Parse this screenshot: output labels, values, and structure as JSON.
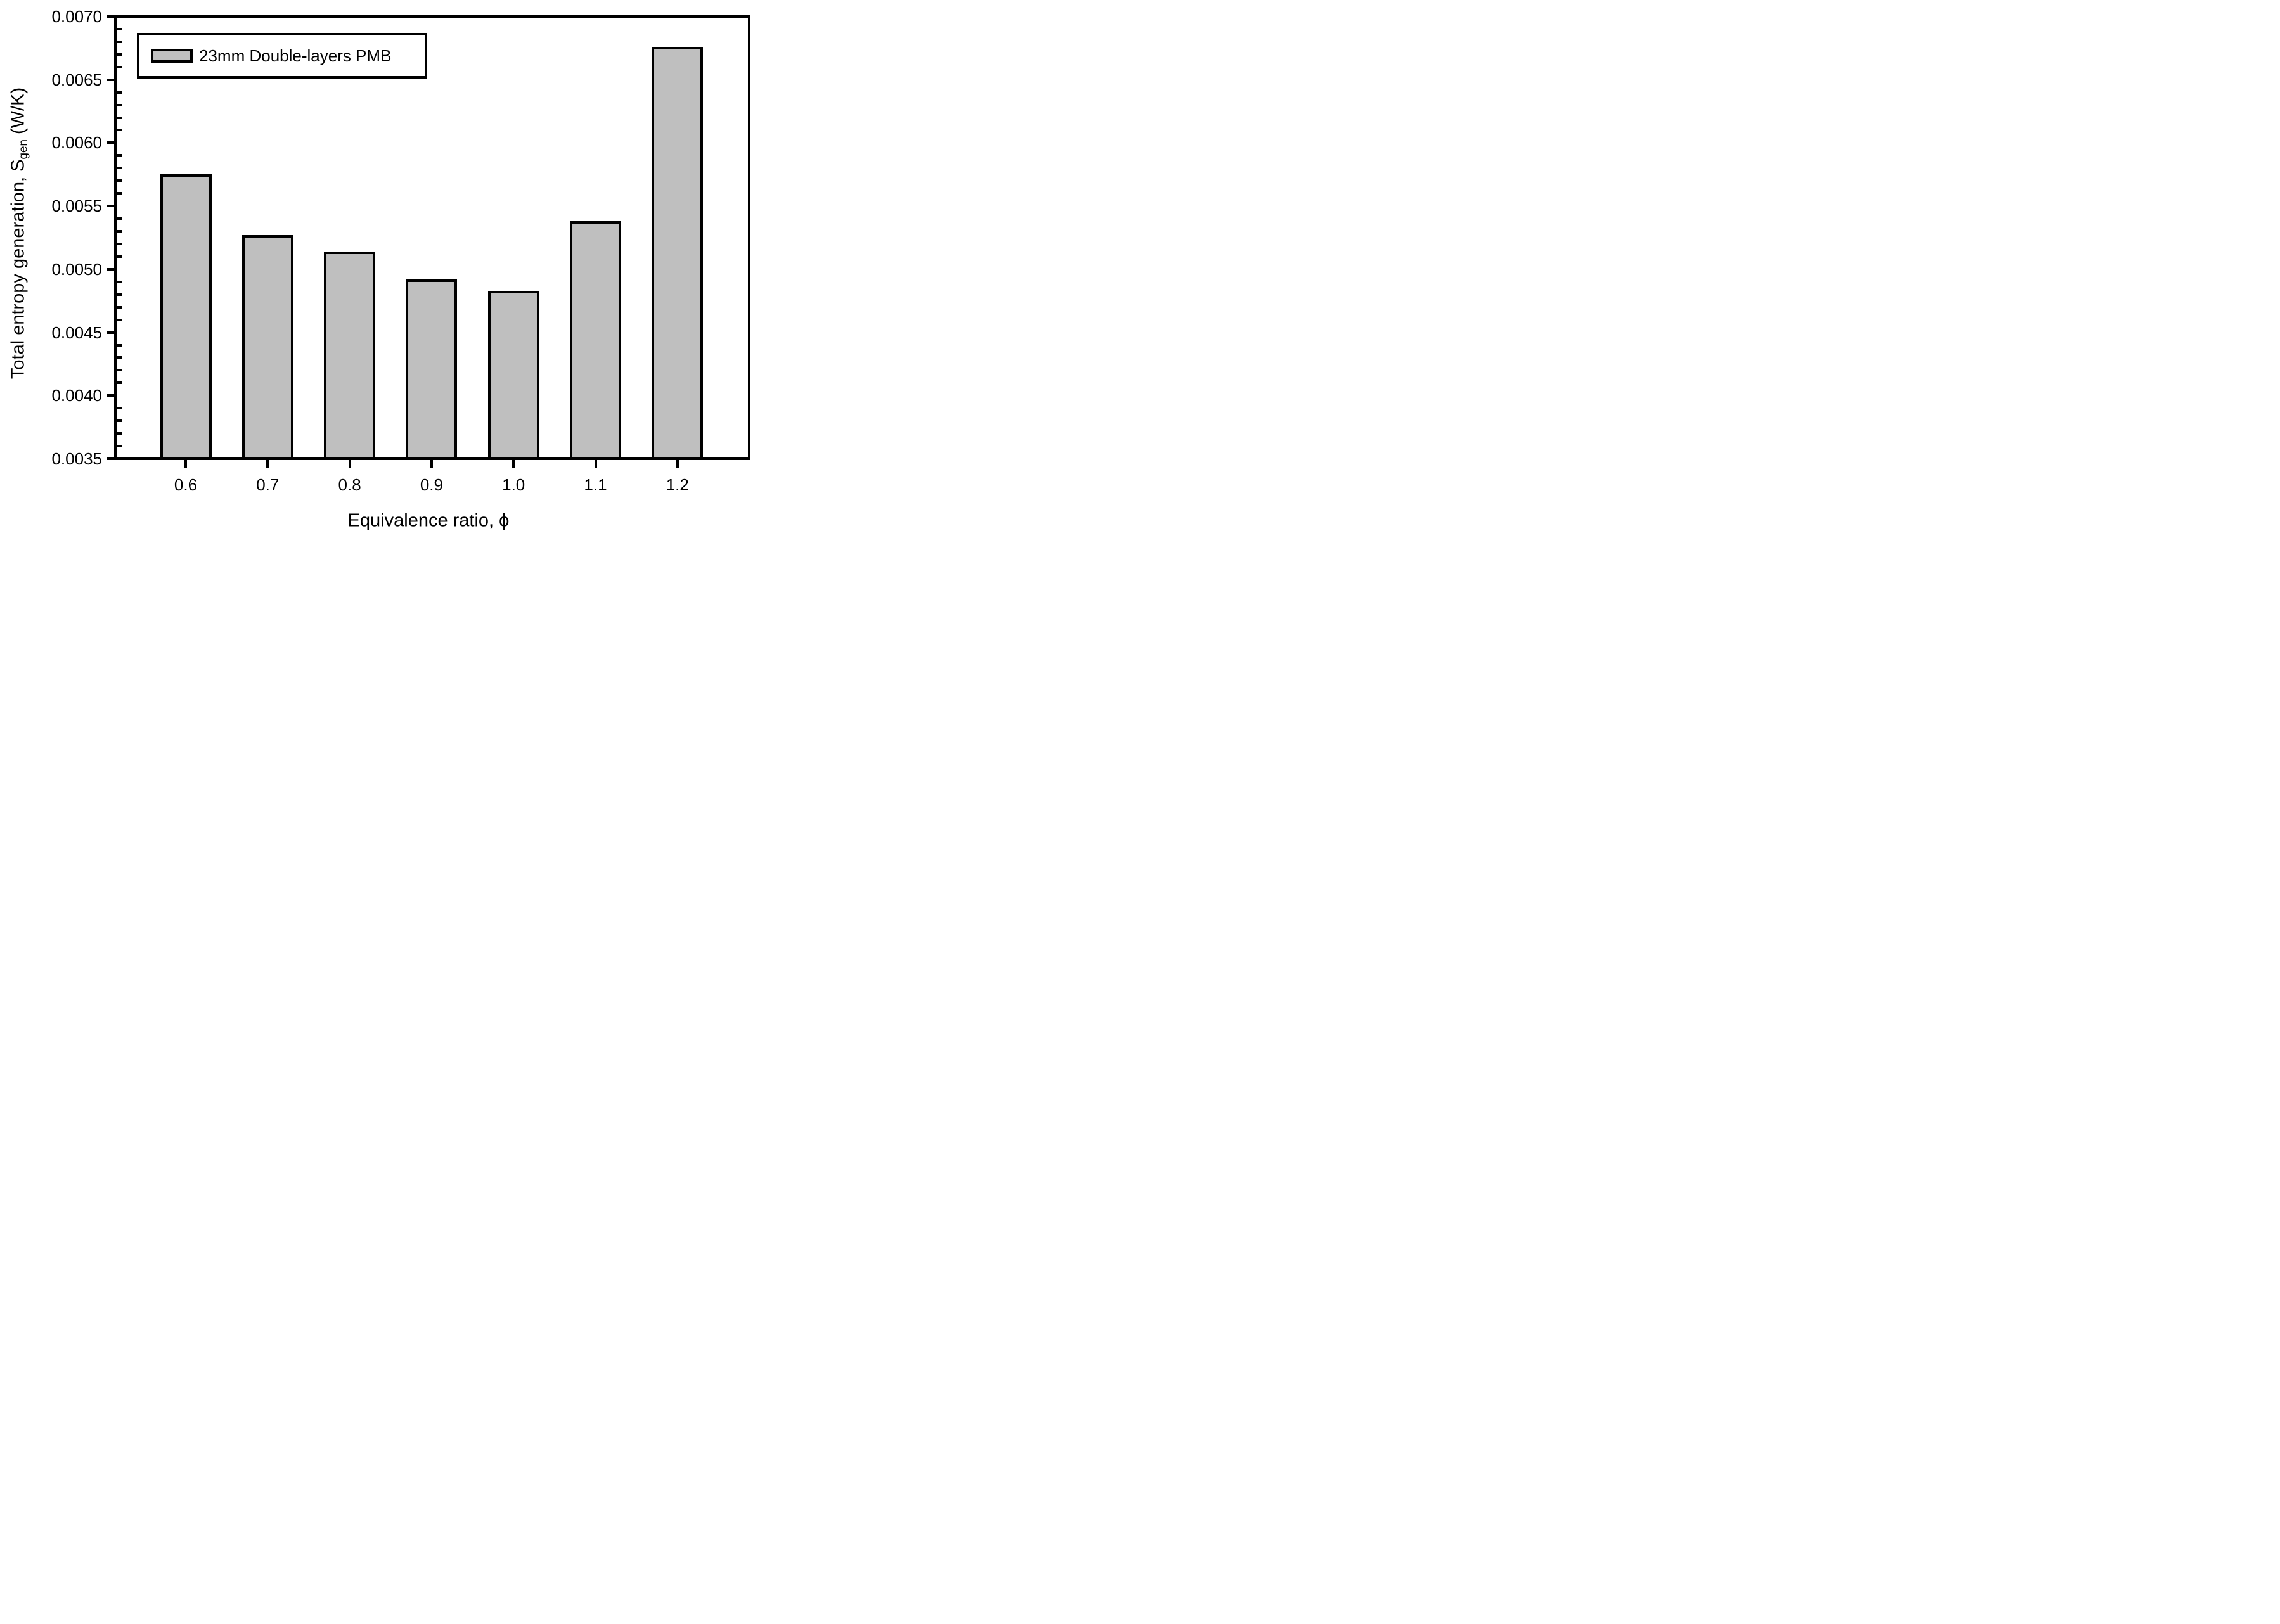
{
  "chart_data": {
    "type": "bar",
    "title": "",
    "categories": [
      "0.6",
      "0.7",
      "0.8",
      "0.9",
      "1.0",
      "1.1",
      "1.2"
    ],
    "values": [
      0.00575,
      0.00527,
      0.00514,
      0.00492,
      0.00483,
      0.00538,
      0.00676
    ],
    "series": [
      {
        "name": "23mm Double-layers PMB",
        "values": [
          0.00575,
          0.00527,
          0.00514,
          0.00492,
          0.00483,
          0.00538,
          0.00676
        ]
      }
    ],
    "xlabel": "Equivalence ratio, ϕ",
    "ylabel": "Total entropy generation, Sgen (W/K)",
    "ylabel_parts": {
      "prefix": "Total entropy generation, S",
      "sub": "gen",
      "suffix": " (W/K)"
    },
    "ylim": [
      0.0035,
      0.007
    ],
    "ytick_step": 0.0005,
    "yminor_step": 0.0001,
    "ytick_labels": [
      "0.0070",
      "0.0065",
      "0.0060",
      "0.0055",
      "0.0050",
      "0.0045",
      "0.0040",
      "0.0035"
    ],
    "grid": false,
    "legend_position": "top-left",
    "colors": {
      "bar_fill": "#bfbfbf",
      "bar_border": "#000000",
      "axis": "#000000",
      "background": "#ffffff",
      "text": "#000000"
    }
  },
  "legend": {
    "label": "23mm Double-layers PMB"
  }
}
